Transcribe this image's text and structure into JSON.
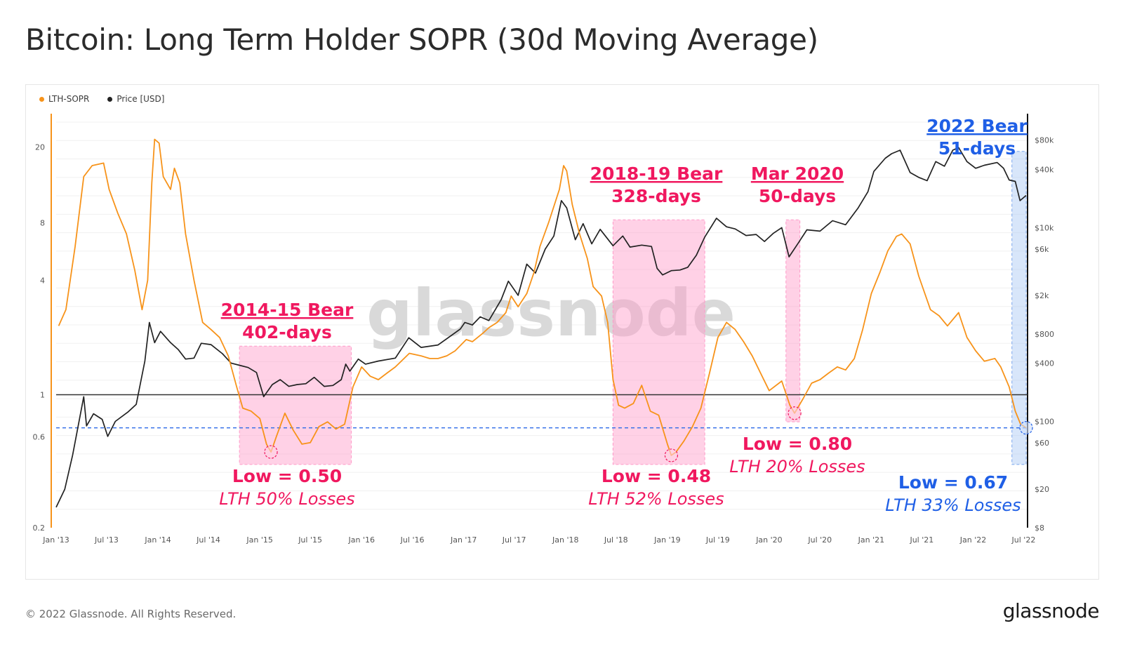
{
  "header": {
    "title": "Bitcoin: Long Term Holder SOPR (30d Moving Average)"
  },
  "footer": {
    "copyright": "© 2022 Glassnode. All Rights Reserved.",
    "logo": "glassnode"
  },
  "watermark": "glassnode",
  "colors": {
    "sopr": "#f7931a",
    "price": "#222222",
    "bear_fill": "#ff99c8",
    "bear_text": "#f0185f",
    "bear2022_fill": "#a9c7f5",
    "bear2022_text": "#1f5fe6",
    "dashed_line": "#2d6be8"
  },
  "chart_data": {
    "type": "line",
    "legend": [
      "LTH-SOPR",
      "Price [USD]"
    ],
    "legend_position": "top-left",
    "x_ticks": [
      "Jan '13",
      "Jul '13",
      "Jan '14",
      "Jul '14",
      "Jan '15",
      "Jul '15",
      "Jan '16",
      "Jul '16",
      "Jan '17",
      "Jul '17",
      "Jan '18",
      "Jul '18",
      "Jan '19",
      "Jul '19",
      "Jan '20",
      "Jul '20",
      "Jan '21",
      "Jul '21",
      "Jan '22",
      "Jul '22"
    ],
    "x_range": [
      "2013-01-01",
      "2022-07-15"
    ],
    "y_left": {
      "scale": "log",
      "ticks": [
        "20",
        "8",
        "4",
        "1",
        "0.6",
        "0.2"
      ],
      "tick_values": [
        20,
        8,
        4,
        1,
        0.6,
        0.2
      ],
      "range": [
        0.2,
        30
      ]
    },
    "y_right": {
      "scale": "log",
      "ticks": [
        "$80k",
        "$40k",
        "$10k",
        "$6k",
        "$2k",
        "$800",
        "$400",
        "$100",
        "$60",
        "$20",
        "$8"
      ],
      "tick_values": [
        80000,
        40000,
        10000,
        6000,
        2000,
        800,
        400,
        100,
        60,
        20,
        8
      ],
      "range": [
        8,
        150000
      ]
    },
    "reference_lines": [
      {
        "value": 1,
        "axis": "left",
        "style": "solid"
      },
      {
        "value": 0.67,
        "axis": "left",
        "style": "dashed"
      }
    ],
    "series": [
      {
        "name": "LTH-SOPR",
        "axis": "left",
        "points": [
          [
            "2013-01-10",
            2.3
          ],
          [
            "2013-02-05",
            2.8
          ],
          [
            "2013-03-10",
            6
          ],
          [
            "2013-04-10",
            14
          ],
          [
            "2013-05-10",
            16
          ],
          [
            "2013-06-20",
            16.5
          ],
          [
            "2013-07-10",
            12
          ],
          [
            "2013-08-10",
            9
          ],
          [
            "2013-09-10",
            7
          ],
          [
            "2013-10-10",
            4.5
          ],
          [
            "2013-11-05",
            2.8
          ],
          [
            "2013-11-25",
            4
          ],
          [
            "2013-12-10",
            13
          ],
          [
            "2013-12-20",
            22
          ],
          [
            "2014-01-05",
            21
          ],
          [
            "2014-01-20",
            14
          ],
          [
            "2014-02-15",
            12
          ],
          [
            "2014-03-01",
            15.5
          ],
          [
            "2014-03-20",
            13
          ],
          [
            "2014-04-10",
            7
          ],
          [
            "2014-05-10",
            4
          ],
          [
            "2014-06-10",
            2.4
          ],
          [
            "2014-07-10",
            2.2
          ],
          [
            "2014-08-10",
            2
          ],
          [
            "2014-09-10",
            1.6
          ],
          [
            "2014-10-10",
            1.1
          ],
          [
            "2014-11-01",
            0.85
          ],
          [
            "2014-12-01",
            0.82
          ],
          [
            "2015-01-01",
            0.75
          ],
          [
            "2015-01-25",
            0.55
          ],
          [
            "2015-02-10",
            0.5
          ],
          [
            "2015-03-01",
            0.6
          ],
          [
            "2015-04-01",
            0.8
          ],
          [
            "2015-05-01",
            0.65
          ],
          [
            "2015-06-01",
            0.55
          ],
          [
            "2015-07-01",
            0.56
          ],
          [
            "2015-08-01",
            0.68
          ],
          [
            "2015-09-01",
            0.72
          ],
          [
            "2015-10-01",
            0.66
          ],
          [
            "2015-11-01",
            0.7
          ],
          [
            "2015-12-01",
            1.1
          ],
          [
            "2016-01-01",
            1.4
          ],
          [
            "2016-02-01",
            1.25
          ],
          [
            "2016-03-01",
            1.2
          ],
          [
            "2016-04-01",
            1.3
          ],
          [
            "2016-05-01",
            1.4
          ],
          [
            "2016-06-20",
            1.65
          ],
          [
            "2016-08-01",
            1.6
          ],
          [
            "2016-09-01",
            1.55
          ],
          [
            "2016-10-01",
            1.55
          ],
          [
            "2016-11-01",
            1.6
          ],
          [
            "2016-12-01",
            1.7
          ],
          [
            "2017-01-10",
            1.95
          ],
          [
            "2017-02-01",
            1.9
          ],
          [
            "2017-03-10",
            2.1
          ],
          [
            "2017-04-01",
            2.25
          ],
          [
            "2017-05-01",
            2.4
          ],
          [
            "2017-06-01",
            2.7
          ],
          [
            "2017-06-20",
            3.3
          ],
          [
            "2017-07-15",
            2.9
          ],
          [
            "2017-08-15",
            3.4
          ],
          [
            "2017-09-10",
            4.4
          ],
          [
            "2017-10-01",
            6
          ],
          [
            "2017-11-01",
            8
          ],
          [
            "2017-12-10",
            12
          ],
          [
            "2017-12-25",
            16
          ],
          [
            "2018-01-05",
            15
          ],
          [
            "2018-01-25",
            10
          ],
          [
            "2018-02-20",
            7
          ],
          [
            "2018-03-20",
            5.2
          ],
          [
            "2018-04-10",
            3.7
          ],
          [
            "2018-05-10",
            3.3
          ],
          [
            "2018-06-01",
            2.4
          ],
          [
            "2018-06-20",
            1.2
          ],
          [
            "2018-07-10",
            0.88
          ],
          [
            "2018-08-01",
            0.85
          ],
          [
            "2018-09-01",
            0.9
          ],
          [
            "2018-10-01",
            1.12
          ],
          [
            "2018-11-01",
            0.82
          ],
          [
            "2018-12-01",
            0.78
          ],
          [
            "2019-01-01",
            0.55
          ],
          [
            "2019-01-15",
            0.48
          ],
          [
            "2019-02-01",
            0.5
          ],
          [
            "2019-03-01",
            0.57
          ],
          [
            "2019-04-01",
            0.68
          ],
          [
            "2019-05-01",
            0.85
          ],
          [
            "2019-06-01",
            1.3
          ],
          [
            "2019-07-01",
            2
          ],
          [
            "2019-08-01",
            2.4
          ],
          [
            "2019-09-01",
            2.2
          ],
          [
            "2019-10-01",
            1.9
          ],
          [
            "2019-11-01",
            1.6
          ],
          [
            "2019-12-01",
            1.3
          ],
          [
            "2020-01-01",
            1.05
          ],
          [
            "2020-02-15",
            1.18
          ],
          [
            "2020-03-15",
            0.88
          ],
          [
            "2020-04-01",
            0.8
          ],
          [
            "2020-05-01",
            0.95
          ],
          [
            "2020-06-01",
            1.15
          ],
          [
            "2020-07-01",
            1.2
          ],
          [
            "2020-08-01",
            1.3
          ],
          [
            "2020-09-01",
            1.4
          ],
          [
            "2020-10-01",
            1.35
          ],
          [
            "2020-11-01",
            1.55
          ],
          [
            "2020-12-01",
            2.2
          ],
          [
            "2021-01-01",
            3.4
          ],
          [
            "2021-02-01",
            4.4
          ],
          [
            "2021-03-01",
            5.7
          ],
          [
            "2021-04-01",
            6.8
          ],
          [
            "2021-04-20",
            7
          ],
          [
            "2021-05-20",
            6.2
          ],
          [
            "2021-06-20",
            4.2
          ],
          [
            "2021-08-01",
            2.8
          ],
          [
            "2021-09-01",
            2.6
          ],
          [
            "2021-10-01",
            2.3
          ],
          [
            "2021-11-10",
            2.7
          ],
          [
            "2021-12-10",
            2
          ],
          [
            "2022-01-10",
            1.7
          ],
          [
            "2022-02-10",
            1.5
          ],
          [
            "2022-03-20",
            1.55
          ],
          [
            "2022-04-10",
            1.4
          ],
          [
            "2022-05-10",
            1.1
          ],
          [
            "2022-06-01",
            0.82
          ],
          [
            "2022-06-20",
            0.7
          ],
          [
            "2022-07-10",
            0.67
          ]
        ]
      },
      {
        "name": "Price [USD]",
        "axis": "right",
        "points": [
          [
            "2013-01-01",
            13
          ],
          [
            "2013-02-01",
            20
          ],
          [
            "2013-03-01",
            45
          ],
          [
            "2013-04-10",
            180
          ],
          [
            "2013-04-20",
            90
          ],
          [
            "2013-05-15",
            120
          ],
          [
            "2013-06-15",
            105
          ],
          [
            "2013-07-05",
            70
          ],
          [
            "2013-08-01",
            100
          ],
          [
            "2013-09-15",
            125
          ],
          [
            "2013-10-15",
            150
          ],
          [
            "2013-11-15",
            420
          ],
          [
            "2013-12-01",
            1050
          ],
          [
            "2013-12-20",
            650
          ],
          [
            "2014-01-10",
            850
          ],
          [
            "2014-02-15",
            650
          ],
          [
            "2014-03-15",
            550
          ],
          [
            "2014-04-10",
            440
          ],
          [
            "2014-05-10",
            450
          ],
          [
            "2014-06-05",
            640
          ],
          [
            "2014-07-10",
            620
          ],
          [
            "2014-08-20",
            500
          ],
          [
            "2014-09-20",
            400
          ],
          [
            "2014-10-20",
            380
          ],
          [
            "2014-11-20",
            360
          ],
          [
            "2014-12-20",
            320
          ],
          [
            "2015-01-15",
            180
          ],
          [
            "2015-02-15",
            240
          ],
          [
            "2015-03-15",
            270
          ],
          [
            "2015-04-15",
            230
          ],
          [
            "2015-05-15",
            240
          ],
          [
            "2015-06-15",
            245
          ],
          [
            "2015-07-15",
            285
          ],
          [
            "2015-08-20",
            230
          ],
          [
            "2015-09-20",
            235
          ],
          [
            "2015-10-20",
            270
          ],
          [
            "2015-11-05",
            390
          ],
          [
            "2015-11-20",
            330
          ],
          [
            "2015-12-20",
            440
          ],
          [
            "2016-01-15",
            390
          ],
          [
            "2016-03-01",
            420
          ],
          [
            "2016-05-01",
            450
          ],
          [
            "2016-06-18",
            730
          ],
          [
            "2016-08-01",
            580
          ],
          [
            "2016-10-01",
            615
          ],
          [
            "2016-12-20",
            900
          ],
          [
            "2017-01-05",
            1050
          ],
          [
            "2017-02-01",
            990
          ],
          [
            "2017-03-01",
            1200
          ],
          [
            "2017-04-01",
            1100
          ],
          [
            "2017-05-15",
            1800
          ],
          [
            "2017-06-10",
            2800
          ],
          [
            "2017-07-15",
            2000
          ],
          [
            "2017-08-15",
            4200
          ],
          [
            "2017-09-15",
            3400
          ],
          [
            "2017-10-20",
            6000
          ],
          [
            "2017-11-20",
            8200
          ],
          [
            "2017-12-17",
            19000
          ],
          [
            "2018-01-05",
            16000
          ],
          [
            "2018-02-05",
            7500
          ],
          [
            "2018-03-05",
            11000
          ],
          [
            "2018-04-05",
            6800
          ],
          [
            "2018-05-05",
            9600
          ],
          [
            "2018-06-20",
            6500
          ],
          [
            "2018-07-25",
            8200
          ],
          [
            "2018-08-20",
            6300
          ],
          [
            "2018-10-01",
            6600
          ],
          [
            "2018-11-05",
            6400
          ],
          [
            "2018-11-25",
            3800
          ],
          [
            "2018-12-15",
            3250
          ],
          [
            "2019-01-15",
            3600
          ],
          [
            "2019-02-15",
            3650
          ],
          [
            "2019-03-15",
            3900
          ],
          [
            "2019-04-15",
            5200
          ],
          [
            "2019-05-15",
            8000
          ],
          [
            "2019-06-26",
            12500
          ],
          [
            "2019-08-01",
            10200
          ],
          [
            "2019-09-01",
            9700
          ],
          [
            "2019-10-10",
            8300
          ],
          [
            "2019-11-15",
            8500
          ],
          [
            "2019-12-15",
            7200
          ],
          [
            "2020-01-15",
            8700
          ],
          [
            "2020-02-15",
            10000
          ],
          [
            "2020-03-12",
            5000
          ],
          [
            "2020-04-15",
            7000
          ],
          [
            "2020-05-15",
            9500
          ],
          [
            "2020-07-01",
            9200
          ],
          [
            "2020-08-15",
            11800
          ],
          [
            "2020-10-01",
            10700
          ],
          [
            "2020-11-15",
            16000
          ],
          [
            "2020-12-20",
            23500
          ],
          [
            "2021-01-10",
            38000
          ],
          [
            "2021-02-20",
            52000
          ],
          [
            "2021-03-15",
            58000
          ],
          [
            "2021-04-14",
            63000
          ],
          [
            "2021-05-20",
            37000
          ],
          [
            "2021-06-20",
            33000
          ],
          [
            "2021-07-20",
            30500
          ],
          [
            "2021-08-20",
            48000
          ],
          [
            "2021-09-20",
            43000
          ],
          [
            "2021-10-20",
            63000
          ],
          [
            "2021-11-10",
            67000
          ],
          [
            "2021-12-10",
            48000
          ],
          [
            "2022-01-10",
            41000
          ],
          [
            "2022-02-10",
            44000
          ],
          [
            "2022-03-28",
            47000
          ],
          [
            "2022-04-20",
            41000
          ],
          [
            "2022-05-10",
            31000
          ],
          [
            "2022-06-01",
            30000
          ],
          [
            "2022-06-18",
            19000
          ],
          [
            "2022-07-10",
            21500
          ]
        ]
      }
    ],
    "annotations": [
      {
        "title": [
          "2014-15 Bear",
          "402-days"
        ],
        "low": "Low = 0.50",
        "losses": "LTH 50% Losses",
        "style": "bear"
      },
      {
        "title": [
          "2018-19 Bear",
          "328-days"
        ],
        "low": "Low = 0.48",
        "losses": "LTH 52% Losses",
        "style": "bear"
      },
      {
        "title": [
          "Mar 2020",
          "50-days"
        ],
        "low": "Low = 0.80",
        "losses": "LTH 20% Losses",
        "style": "bear"
      },
      {
        "title": [
          "2022 Bear",
          "51-days"
        ],
        "low": "Low = 0.67",
        "losses": "LTH 33% Losses",
        "style": "bear2022"
      }
    ],
    "shaded_periods": [
      {
        "start": "2014-10-20",
        "end": "2015-11-25",
        "axis_low": 0.43,
        "axis_high": 1.8,
        "style": "bear"
      },
      {
        "start": "2018-06-20",
        "end": "2019-05-15",
        "axis_low": 0.43,
        "axis_high": 8.3,
        "style": "bear"
      },
      {
        "start": "2020-03-01",
        "end": "2020-04-20",
        "axis_low": 0.72,
        "axis_high": 8.3,
        "style": "bear"
      },
      {
        "start": "2022-05-20",
        "end": "2022-07-10",
        "axis_low": 0.43,
        "axis_high": 19,
        "style": "bear2022"
      }
    ],
    "low_markers": [
      {
        "date": "2015-02-10",
        "value": 0.5
      },
      {
        "date": "2019-01-15",
        "value": 0.48
      },
      {
        "date": "2020-04-01",
        "value": 0.8
      },
      {
        "date": "2022-07-10",
        "value": 0.67
      }
    ]
  }
}
